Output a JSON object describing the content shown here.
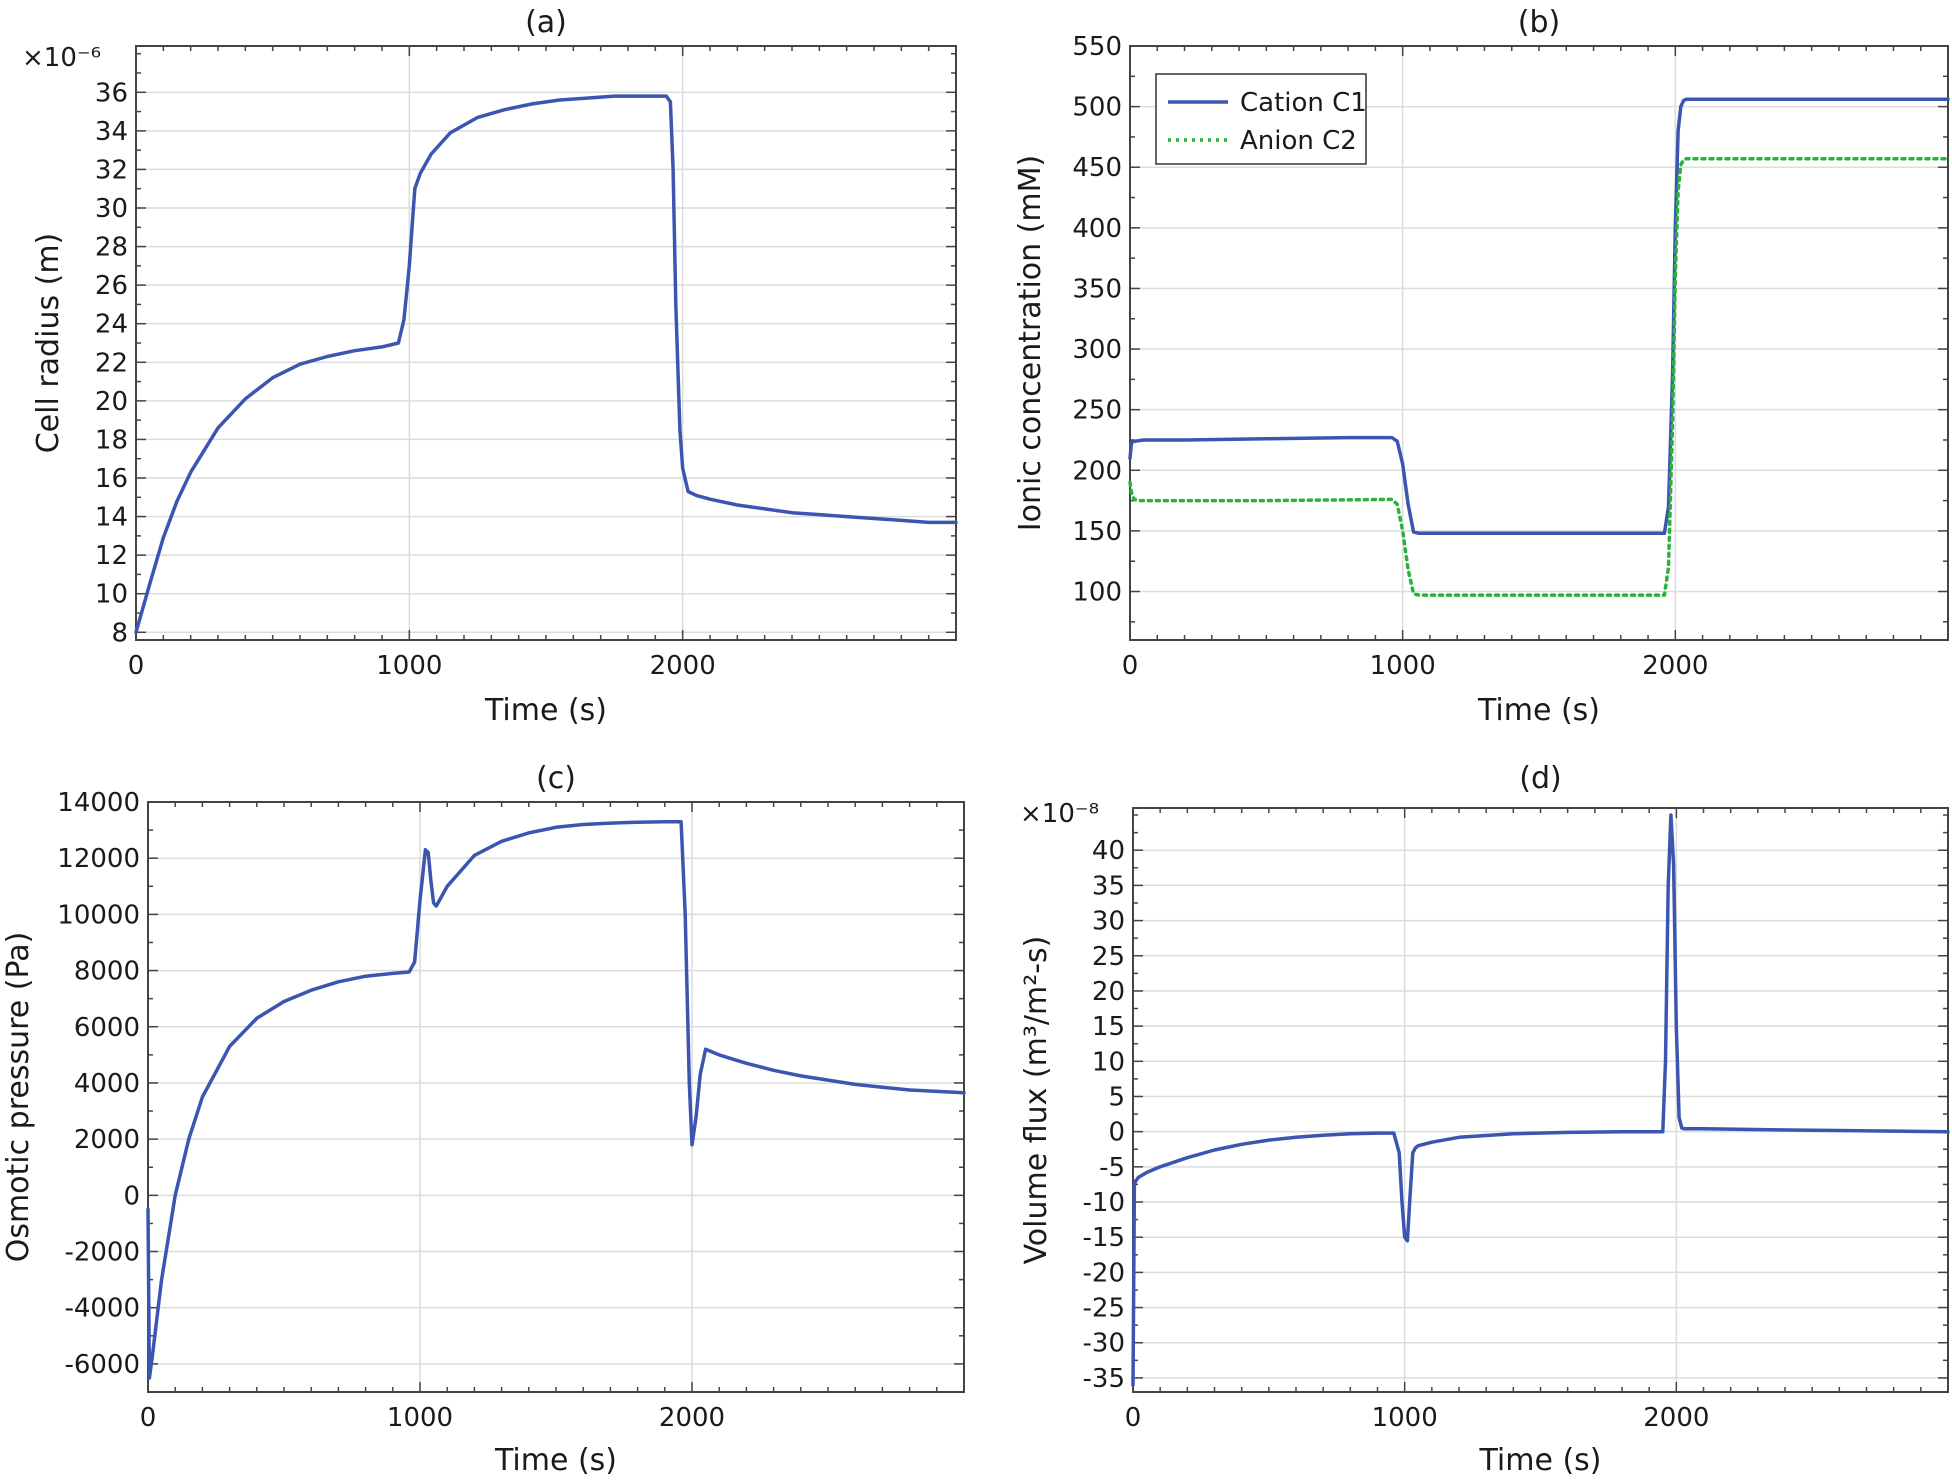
{
  "colors": {
    "blue": "#3b55b0",
    "green": "#29b33a",
    "grid": "#dcdcdc",
    "axis": "#444444"
  },
  "chart_data": [
    {
      "panel": "a",
      "type": "line",
      "title": "(a)",
      "xlabel": "Time (s)",
      "ylabel": "Cell radius (m)",
      "y_multiplier": "×10⁻⁶",
      "xlim": [
        0,
        3000
      ],
      "ylim": [
        7.6,
        38.4
      ],
      "xticks": [
        0,
        1000,
        2000
      ],
      "yticks": [
        8,
        10,
        12,
        14,
        16,
        18,
        20,
        22,
        24,
        26,
        28,
        30,
        32,
        34,
        36
      ],
      "grid": true,
      "series": [
        {
          "color": "#3b55b0",
          "style": "solid",
          "x": [
            0,
            50,
            100,
            150,
            200,
            300,
            400,
            500,
            600,
            700,
            800,
            900,
            960,
            980,
            1000,
            1020,
            1040,
            1080,
            1150,
            1250,
            1350,
            1450,
            1550,
            1650,
            1750,
            1850,
            1940,
            1955,
            1965,
            1975,
            1990,
            2000,
            2020,
            2050,
            2100,
            2200,
            2300,
            2400,
            2500,
            2600,
            2700,
            2800,
            2900,
            3000
          ],
          "y": [
            8.0,
            10.5,
            12.9,
            14.8,
            16.3,
            18.6,
            20.1,
            21.2,
            21.9,
            22.3,
            22.6,
            22.8,
            23.0,
            24.2,
            27.0,
            31.0,
            31.8,
            32.8,
            33.9,
            34.7,
            35.1,
            35.4,
            35.6,
            35.7,
            35.8,
            35.8,
            35.8,
            35.5,
            32.0,
            25.0,
            18.5,
            16.5,
            15.3,
            15.1,
            14.9,
            14.6,
            14.4,
            14.2,
            14.1,
            14.0,
            13.9,
            13.8,
            13.7,
            13.7
          ]
        }
      ]
    },
    {
      "panel": "b",
      "type": "line",
      "title": "(b)",
      "xlabel": "Time (s)",
      "ylabel": "Ionic concentration (mM)",
      "xlim": [
        0,
        3000
      ],
      "ylim": [
        60,
        550
      ],
      "xticks": [
        0,
        1000,
        2000
      ],
      "yticks": [
        100,
        150,
        200,
        250,
        300,
        350,
        400,
        450,
        500,
        550
      ],
      "grid": true,
      "legend_position": "top-left",
      "series": [
        {
          "name": "Cation C1",
          "color": "#3b55b0",
          "style": "solid",
          "x": [
            0,
            5,
            10,
            20,
            50,
            200,
            500,
            800,
            960,
            980,
            1000,
            1020,
            1040,
            1060,
            1080,
            1500,
            1960,
            1975,
            1990,
            2000,
            2010,
            2020,
            2030,
            2040,
            2500,
            3000
          ],
          "y": [
            210,
            222,
            224,
            224,
            225,
            225,
            226,
            227,
            227,
            224,
            205,
            172,
            149,
            148,
            148,
            148,
            148,
            170,
            280,
            400,
            480,
            500,
            505,
            506,
            506,
            506
          ]
        },
        {
          "name": "Anion C2",
          "color": "#29b33a",
          "style": "dotted",
          "x": [
            0,
            5,
            15,
            30,
            50,
            500,
            960,
            980,
            1000,
            1020,
            1040,
            1060,
            1500,
            1960,
            1975,
            1990,
            2000,
            2010,
            2020,
            2030,
            2040,
            2500,
            3000
          ],
          "y": [
            190,
            182,
            176,
            175,
            175,
            175,
            176,
            172,
            150,
            118,
            98,
            97,
            97,
            97,
            120,
            240,
            360,
            430,
            452,
            456,
            457,
            457,
            457
          ]
        }
      ]
    },
    {
      "panel": "c",
      "type": "line",
      "title": "(c)",
      "xlabel": "Time (s)",
      "ylabel": "Osmotic pressure (Pa)",
      "xlim": [
        0,
        3000
      ],
      "ylim": [
        -7000,
        14000
      ],
      "xticks": [
        0,
        1000,
        2000
      ],
      "yticks": [
        -6000,
        -4000,
        -2000,
        0,
        2000,
        4000,
        6000,
        8000,
        10000,
        12000,
        14000
      ],
      "grid": true,
      "series": [
        {
          "color": "#3b55b0",
          "style": "solid",
          "x": [
            0,
            5,
            15,
            25,
            35,
            50,
            80,
            100,
            150,
            200,
            300,
            400,
            500,
            600,
            700,
            800,
            900,
            960,
            980,
            1000,
            1020,
            1030,
            1040,
            1050,
            1060,
            1100,
            1200,
            1300,
            1400,
            1500,
            1600,
            1700,
            1800,
            1900,
            1960,
            1975,
            1990,
            2000,
            2015,
            2030,
            2050,
            2100,
            2200,
            2300,
            2400,
            2500,
            2600,
            2700,
            2800,
            2900,
            3000
          ],
          "y": [
            -500,
            -6500,
            -5800,
            -5000,
            -4200,
            -3000,
            -1200,
            0,
            2000,
            3500,
            5300,
            6300,
            6900,
            7300,
            7600,
            7800,
            7900,
            7950,
            8300,
            10500,
            12300,
            12200,
            11200,
            10400,
            10300,
            11000,
            12100,
            12600,
            12900,
            13100,
            13200,
            13250,
            13280,
            13300,
            13300,
            10000,
            4000,
            1800,
            2800,
            4300,
            5200,
            5000,
            4700,
            4450,
            4250,
            4100,
            3950,
            3850,
            3750,
            3700,
            3650
          ]
        }
      ]
    },
    {
      "panel": "d",
      "type": "line",
      "title": "(d)",
      "xlabel": "Time (s)",
      "ylabel": "Volume flux (m³/m²-s)",
      "y_multiplier": "×10⁻⁸",
      "xlim": [
        0,
        3000
      ],
      "ylim": [
        -37,
        46
      ],
      "xticks": [
        0,
        1000,
        2000
      ],
      "yticks": [
        -35,
        -30,
        -25,
        -20,
        -15,
        -10,
        -5,
        0,
        5,
        10,
        15,
        20,
        25,
        30,
        35,
        40
      ],
      "grid": true,
      "series": [
        {
          "color": "#3b55b0",
          "style": "solid",
          "x": [
            0,
            5,
            10,
            20,
            50,
            100,
            200,
            300,
            400,
            500,
            600,
            700,
            800,
            900,
            960,
            980,
            990,
            1000,
            1010,
            1020,
            1030,
            1040,
            1050,
            1100,
            1200,
            1400,
            1600,
            1800,
            1950,
            1960,
            1970,
            1980,
            1990,
            2000,
            2010,
            2020,
            2030,
            2100,
            2500,
            3000
          ],
          "y": [
            -36,
            -7.5,
            -7,
            -6.5,
            -5.8,
            -5,
            -3.7,
            -2.6,
            -1.8,
            -1.2,
            -0.8,
            -0.5,
            -0.3,
            -0.2,
            -0.2,
            -3,
            -10,
            -15,
            -15.5,
            -9,
            -3,
            -2.3,
            -2,
            -1.5,
            -0.8,
            -0.3,
            -0.1,
            0,
            0,
            10,
            35,
            45,
            38,
            15,
            2,
            0.5,
            0.4,
            0.4,
            0.2,
            0
          ]
        }
      ]
    }
  ]
}
